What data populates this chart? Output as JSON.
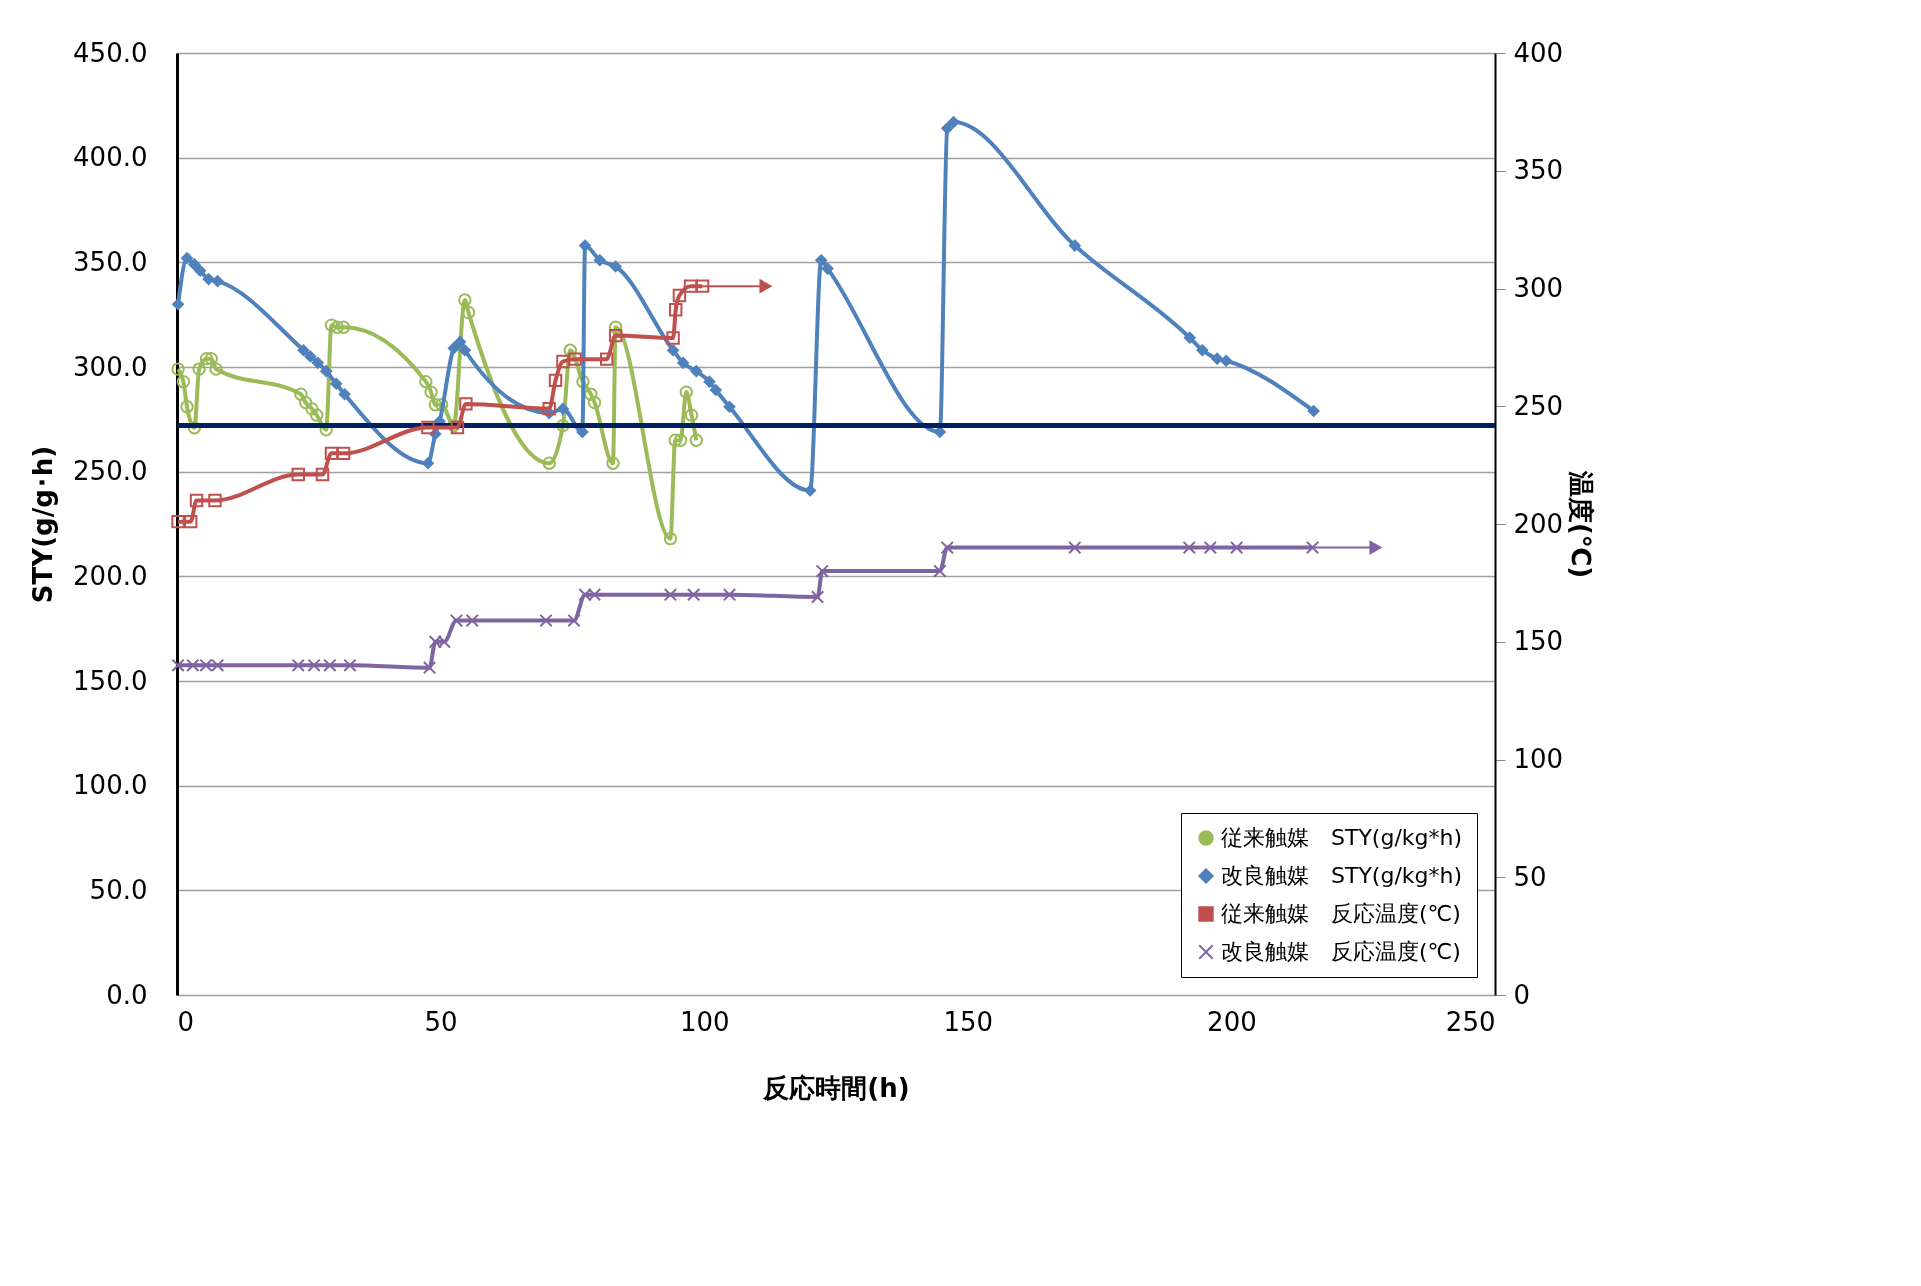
{
  "chart_data": {
    "type": "line",
    "xlabel": "反応時間(h)",
    "ylabel": "STY(g/g･h)",
    "y2label": "温度(℃)",
    "xlim": [
      0,
      250
    ],
    "xticks": [
      0,
      50,
      100,
      150,
      200,
      250
    ],
    "ylim": [
      0,
      450
    ],
    "yticks": [
      {
        "value": 0,
        "label": "0.0"
      },
      {
        "value": 50,
        "label": "50.0"
      },
      {
        "value": 100,
        "label": "100.0"
      },
      {
        "value": 150,
        "label": "150.0"
      },
      {
        "value": 200,
        "label": "200.0"
      },
      {
        "value": 250,
        "label": "250.0"
      },
      {
        "value": 300,
        "label": "300.0"
      },
      {
        "value": 350,
        "label": "350.0"
      },
      {
        "value": 400,
        "label": "400.0"
      },
      {
        "value": 450,
        "label": "450.0"
      }
    ],
    "y2lim": [
      0,
      400
    ],
    "y2ticks": [
      0,
      50,
      100,
      150,
      200,
      250,
      300,
      350,
      400
    ],
    "grid": "y",
    "legend": "bottom right",
    "line_style": "solid",
    "ref_lines": [
      {
        "axis": "y",
        "value": 272,
        "color": "#002060"
      }
    ],
    "series": [
      {
        "name": "従来触媒　STY(g/kg*h)",
        "color": "#9bbb59",
        "marker": "circle",
        "x": [
          0.2,
          1.2,
          1.9,
          3.3,
          4.2,
          5.6,
          6.5,
          7.4,
          23.5,
          24.4,
          25.6,
          26.5,
          28.3,
          29.3,
          30.4,
          31.6,
          47.2,
          48.2,
          49.0,
          50.2,
          52.5,
          54.6,
          55.3,
          70.6,
          73.2,
          74.6,
          77.0,
          78.5,
          79.2,
          82.7,
          83.2,
          93.6,
          94.5,
          95.5,
          96.6,
          97.6,
          98.5
        ],
        "values": [
          299,
          293,
          281,
          271,
          299,
          304,
          304,
          299,
          287,
          283,
          280,
          277,
          270,
          320,
          319,
          319,
          293,
          288,
          282,
          282,
          272,
          332,
          326,
          254,
          272,
          308,
          293,
          287,
          283,
          254,
          319,
          218,
          265,
          265,
          288,
          277,
          265
        ]
      },
      {
        "name": "改良触媒　STY(g/kg*h)",
        "color": "#4f81bd",
        "marker": "diamond",
        "x": [
          0.2,
          1.9,
          3.3,
          4.4,
          6.0,
          7.7,
          24.0,
          25.3,
          26.7,
          28.3,
          30.2,
          31.8,
          47.6,
          49.0,
          49.8,
          52.5,
          53.7,
          54.6,
          70.6,
          73.2,
          76.9,
          77.4,
          80.2,
          83.2,
          94.1,
          96.0,
          98.5,
          101.0,
          102.2,
          104.8,
          120.1,
          122.2,
          123.4,
          144.7,
          146.1,
          147.3,
          170.3,
          192.1,
          194.5,
          197.3,
          199.0,
          215.6
        ],
        "values": [
          330,
          352,
          349,
          346,
          342,
          341,
          308,
          305,
          302,
          298,
          292,
          287,
          254,
          268,
          274,
          309,
          312,
          308,
          278,
          280,
          269,
          358,
          351,
          348,
          308,
          302,
          298,
          293,
          289,
          281,
          241,
          351,
          347,
          269,
          414,
          417,
          358,
          314,
          308,
          304,
          303,
          279
        ]
      },
      {
        "name": "従来触媒　反応温度(℃)",
        "color": "#c0504d",
        "marker": "square",
        "axis": "y2",
        "x": [
          0.2,
          2.6,
          3.7,
          7.2,
          23.0,
          27.6,
          29.3,
          31.6,
          47.6,
          53.2,
          54.8,
          70.6,
          71.8,
          73.2,
          75.5,
          81.5,
          83.2,
          94.1,
          94.6,
          95.3,
          97.4,
          99.7
        ],
        "values": [
          201,
          201,
          210,
          210,
          221,
          221,
          230,
          230,
          241,
          241,
          251,
          249,
          261,
          269,
          270,
          270,
          280,
          279,
          291,
          297,
          301,
          301
        ]
      },
      {
        "name": "改良触媒　反応温度(℃)",
        "color": "#8064a2",
        "marker": "cross",
        "axis": "y2",
        "x": [
          0.2,
          3.0,
          5.5,
          7.7,
          23.0,
          26.0,
          29.0,
          32.8,
          47.9,
          49.0,
          50.7,
          53.0,
          56.0,
          70.0,
          75.3,
          77.4,
          79.2,
          93.6,
          98.0,
          104.8,
          121.5,
          122.4,
          144.7,
          146.1,
          170.3,
          192.0,
          196.0,
          201.0,
          215.4
        ],
        "values": [
          140,
          140,
          140,
          140,
          140,
          140,
          140,
          140,
          139,
          150,
          150,
          159,
          159,
          159,
          159,
          170,
          170,
          170,
          170,
          170,
          169,
          180,
          180,
          190,
          190,
          190,
          190,
          190,
          190
        ]
      }
    ]
  }
}
